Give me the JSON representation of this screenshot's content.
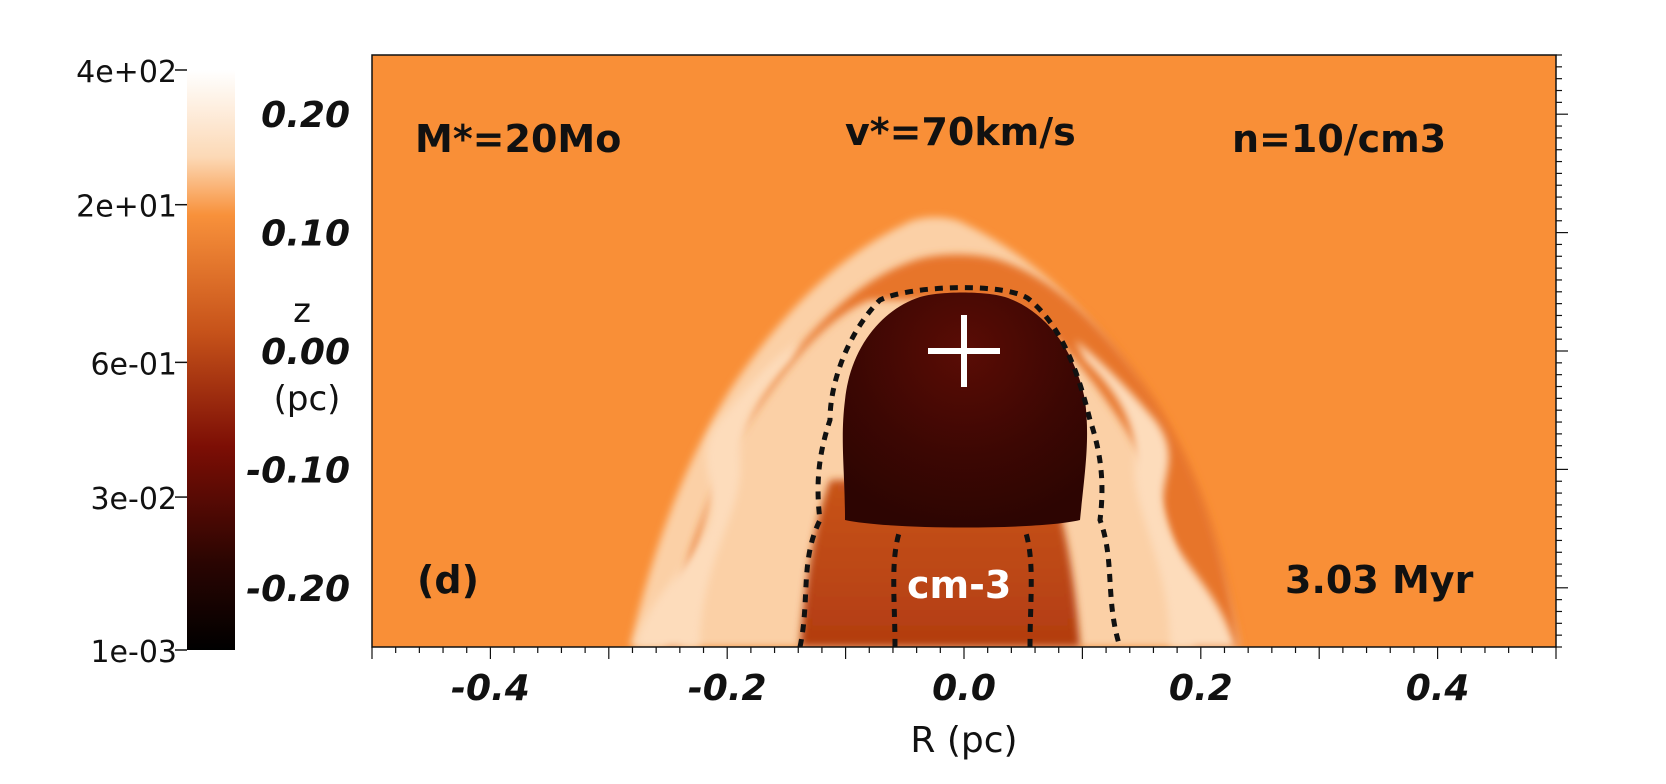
{
  "chart_data": {
    "type": "heatmap",
    "panel_label": "(d)",
    "annotations": {
      "mass": "M*=20Mo",
      "velocity": "v*=70km/s",
      "density": "n=10/cm3",
      "time": "3.03 Myr",
      "units": "cm-3"
    },
    "xlabel": "R (pc)",
    "ylabel": "z",
    "ylabel_units": "(pc)",
    "xlim": [
      -0.5,
      0.5
    ],
    "ylim": [
      -0.25,
      0.25
    ],
    "x_ticks": [
      "-0.4",
      "-0.2",
      "0.0",
      "0.2",
      "0.4"
    ],
    "x_tick_values": [
      -0.4,
      -0.2,
      0.0,
      0.2,
      0.4
    ],
    "y_ticks": [
      "0.20",
      "0.10",
      "0.00",
      "-0.10",
      "-0.20"
    ],
    "y_tick_values": [
      0.2,
      0.1,
      0.0,
      -0.1,
      -0.2
    ],
    "colorbar": {
      "scale": "log",
      "range": [
        0.001,
        400
      ],
      "tick_labels": [
        "4e+02",
        "2e+01",
        "6e-01",
        "3e-02",
        "1e-03"
      ],
      "tick_values": [
        400,
        20,
        0.6,
        0.03,
        0.001
      ],
      "colormap": [
        "#ffffff",
        "#fbd3ad",
        "#f8913b",
        "#c54811",
        "#7a0c04",
        "#000000"
      ]
    },
    "star_position": [
      0.0,
      0.0
    ],
    "background_color": "#f98f37"
  }
}
